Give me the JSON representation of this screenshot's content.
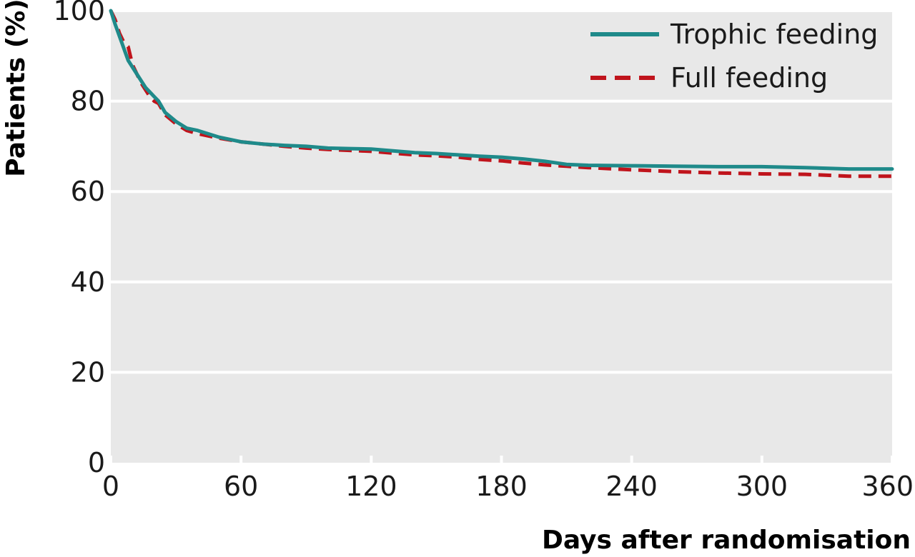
{
  "chart_data": {
    "type": "line",
    "title": "",
    "xlabel": "Days after randomisation",
    "ylabel": "Patients (%)",
    "xlim": [
      0,
      360
    ],
    "ylim": [
      0,
      100
    ],
    "x_ticks": [
      0,
      60,
      120,
      180,
      240,
      300,
      360
    ],
    "y_ticks": [
      0,
      20,
      40,
      60,
      80,
      100
    ],
    "grid": "horizontal",
    "legend_position": "top-right",
    "background_color": "#e8e8e8",
    "series": [
      {
        "name": "Trophic feeding",
        "color": "#1f8a8a",
        "style": "solid",
        "x": [
          0,
          2,
          5,
          8,
          12,
          16,
          20,
          22,
          25,
          30,
          35,
          40,
          50,
          60,
          70,
          80,
          90,
          100,
          110,
          120,
          130,
          140,
          150,
          160,
          170,
          180,
          190,
          200,
          210,
          220,
          240,
          260,
          280,
          300,
          320,
          340,
          360
        ],
        "y": [
          100,
          97,
          93,
          89,
          86,
          83,
          81,
          80,
          77.5,
          75.5,
          74,
          73.5,
          72,
          71,
          70.5,
          70.2,
          70,
          69.6,
          69.5,
          69.4,
          69,
          68.6,
          68.4,
          68.1,
          67.8,
          67.6,
          67.2,
          66.7,
          66,
          65.8,
          65.7,
          65.6,
          65.5,
          65.5,
          65.3,
          65,
          65
        ]
      },
      {
        "name": "Full feeding",
        "color": "#c0141c",
        "style": "dashed",
        "x": [
          0,
          2,
          4,
          6,
          8,
          10,
          14,
          18,
          20,
          22,
          25,
          30,
          35,
          40,
          50,
          60,
          70,
          80,
          90,
          100,
          110,
          120,
          130,
          140,
          150,
          160,
          170,
          180,
          190,
          200,
          210,
          220,
          240,
          260,
          280,
          300,
          320,
          340,
          360
        ],
        "y": [
          100,
          98,
          95,
          93,
          92,
          88,
          84,
          81,
          80,
          79.5,
          77,
          75,
          73.5,
          72.8,
          71.8,
          71,
          70.5,
          70,
          69.6,
          69.3,
          69.1,
          68.9,
          68.5,
          68.1,
          67.9,
          67.6,
          67.1,
          66.8,
          66.3,
          65.9,
          65.6,
          65.3,
          64.8,
          64.4,
          64.1,
          63.9,
          63.8,
          63.4,
          63.4
        ]
      }
    ]
  }
}
